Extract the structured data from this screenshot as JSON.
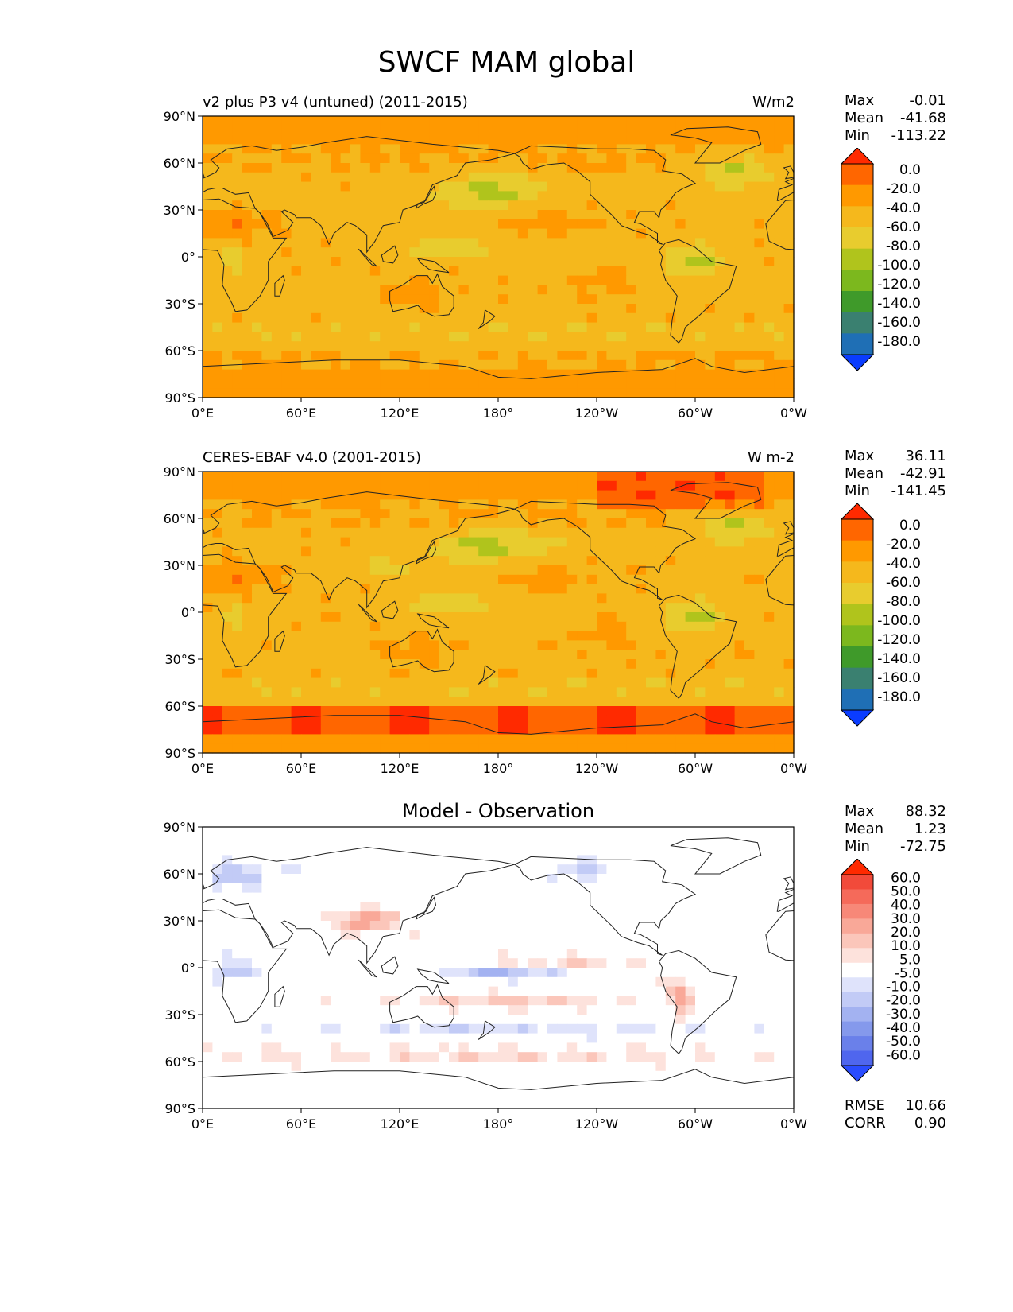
{
  "title": "SWCF MAM global",
  "x_ticks": [
    "0°E",
    "60°E",
    "120°E",
    "180°",
    "120°W",
    "60°W",
    "0°W"
  ],
  "y_ticks": [
    "90°N",
    "60°N",
    "30°N",
    "0°",
    "30°S",
    "60°S",
    "90°S"
  ],
  "panels": [
    {
      "title": "v2 plus P3 v4 (untuned) (2011-2015)",
      "units": "W/m2",
      "stats": {
        "max_label": "Max",
        "max": "-0.01",
        "mean_label": "Mean",
        "mean": "-41.68",
        "min_label": "Min",
        "min": "-113.22"
      },
      "colorbar": {
        "labels": [
          "0.0",
          "-20.0",
          "-40.0",
          "-60.0",
          "-80.0",
          "-100.0",
          "-120.0",
          "-140.0",
          "-160.0",
          "-180.0"
        ],
        "colors": [
          "#ff2a00",
          "#ff6600",
          "#ff9900",
          "#f5b81c",
          "#e8cc2e",
          "#b0c41c",
          "#7cb81e",
          "#3f9a2a",
          "#3a8070",
          "#1f6fb5",
          "#0a3cff"
        ]
      }
    },
    {
      "title": "CERES-EBAF v4.0 (2001-2015)",
      "units": "W m-2",
      "stats": {
        "max_label": "Max",
        "max": "36.11",
        "mean_label": "Mean",
        "mean": "-42.91",
        "min_label": "Min",
        "min": "-141.45"
      },
      "colorbar": {
        "labels": [
          "0.0",
          "-20.0",
          "-40.0",
          "-60.0",
          "-80.0",
          "-100.0",
          "-120.0",
          "-140.0",
          "-160.0",
          "-180.0"
        ],
        "colors": [
          "#ff2a00",
          "#ff6600",
          "#ff9900",
          "#f5b81c",
          "#e8cc2e",
          "#b0c41c",
          "#7cb81e",
          "#3f9a2a",
          "#3a8070",
          "#1f6fb5",
          "#0a3cff"
        ]
      }
    },
    {
      "title": "Model - Observation",
      "units": "",
      "stats": {
        "max_label": "Max",
        "max": "88.32",
        "mean_label": "Mean",
        "mean": "1.23",
        "min_label": "Min",
        "min": "-72.75"
      },
      "colorbar": {
        "labels": [
          "60.0",
          "50.0",
          "40.0",
          "30.0",
          "20.0",
          "10.0",
          "5.0",
          "-5.0",
          "-10.0",
          "-20.0",
          "-30.0",
          "-40.0",
          "-50.0",
          "-60.0"
        ],
        "colors": [
          "#ff2a00",
          "#f24a3a",
          "#f56a5a",
          "#f78878",
          "#f9a898",
          "#fbc6ba",
          "#fde2dc",
          "#ffffff",
          "#dfe3fb",
          "#c2cbf6",
          "#a3b2f1",
          "#8599ec",
          "#6a80ea",
          "#4f66ee",
          "#2a4cff"
        ]
      },
      "extra_stats": {
        "rmse_label": "RMSE",
        "rmse": "10.66",
        "corr_label": "CORR",
        "corr": "0.90"
      }
    }
  ],
  "chart_data": [
    {
      "type": "heatmap",
      "title": "v2 plus P3 v4 (untuned) (2011-2015)",
      "units": "W/m2",
      "x_range": [
        0,
        360
      ],
      "y_range": [
        -90,
        90
      ],
      "stats": {
        "max": -0.01,
        "mean": -41.68,
        "min": -113.22
      },
      "levels": [
        0,
        -20,
        -40,
        -60,
        -80,
        -100,
        -120,
        -140,
        -160,
        -180
      ]
    },
    {
      "type": "heatmap",
      "title": "CERES-EBAF v4.0 (2001-2015)",
      "units": "W m-2",
      "x_range": [
        0,
        360
      ],
      "y_range": [
        -90,
        90
      ],
      "stats": {
        "max": 36.11,
        "mean": -42.91,
        "min": -141.45
      },
      "levels": [
        0,
        -20,
        -40,
        -60,
        -80,
        -100,
        -120,
        -140,
        -160,
        -180
      ]
    },
    {
      "type": "heatmap",
      "title": "Model - Observation",
      "x_range": [
        0,
        360
      ],
      "y_range": [
        -90,
        90
      ],
      "stats": {
        "max": 88.32,
        "mean": 1.23,
        "min": -72.75,
        "rmse": 10.66,
        "corr": 0.9
      },
      "levels": [
        60,
        50,
        40,
        30,
        20,
        10,
        5,
        -5,
        -10,
        -20,
        -30,
        -40,
        -50,
        -60
      ]
    }
  ]
}
